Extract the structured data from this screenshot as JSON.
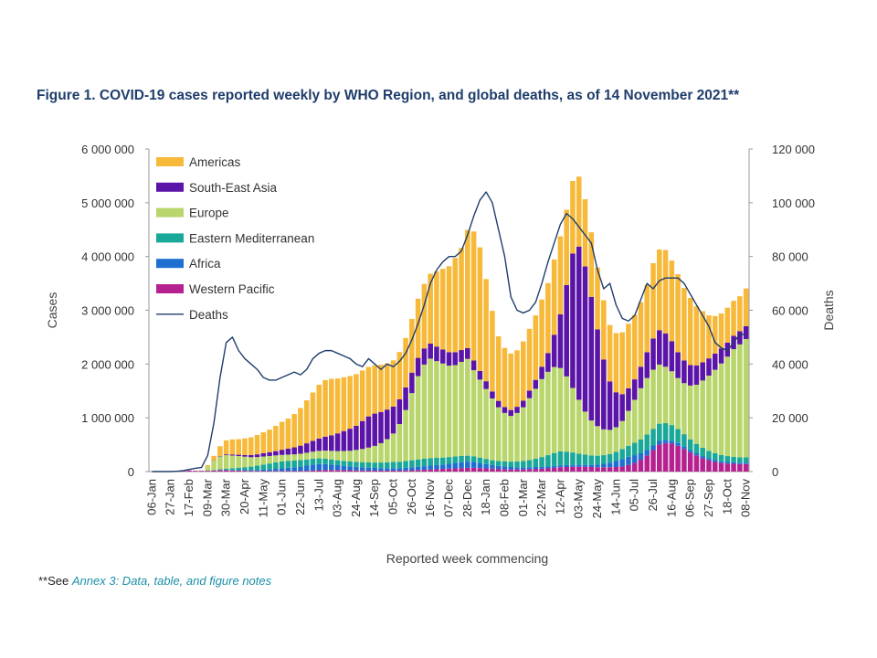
{
  "title": "Figure 1. COVID-19 cases reported weekly by WHO Region, and global deaths, as of 14 November 2021**",
  "footnote": {
    "prefix": "**See ",
    "link_text": "Annex 3: Data, table, and figure notes"
  },
  "chart_data": {
    "type": "bar",
    "stacked": true,
    "title": "Figure 1. COVID-19 cases reported weekly by WHO Region, and global deaths, as of 14 November 2021**",
    "xlabel": "Reported week commencing",
    "ylabel": "Cases",
    "y2label": "Deaths",
    "ylim": [
      0,
      6000000
    ],
    "y2lim": [
      0,
      120000
    ],
    "yticks": [
      "0",
      "1 000 000",
      "2 000 000",
      "3 000 000",
      "4 000 000",
      "5 000 000",
      "6 000 000"
    ],
    "y2ticks": [
      "0",
      "20 000",
      "40 000",
      "60 000",
      "80 000",
      "100 000",
      "120 000"
    ],
    "legend_position": "top-left (inside)",
    "categories": [
      "06-Jan",
      "13-Jan",
      "20-Jan",
      "27-Jan",
      "03-Feb",
      "10-Feb",
      "17-Feb",
      "24-Feb",
      "02-Mar",
      "09-Mar",
      "16-Mar",
      "23-Mar",
      "30-Mar",
      "06-Apr",
      "13-Apr",
      "20-Apr",
      "27-Apr",
      "04-May",
      "11-May",
      "18-May",
      "25-May",
      "01-Jun",
      "08-Jun",
      "15-Jun",
      "22-Jun",
      "29-Jun",
      "06-Jul",
      "13-Jul",
      "20-Jul",
      "27-Jul",
      "03-Aug",
      "10-Aug",
      "17-Aug",
      "24-Aug",
      "31-Aug",
      "07-Sep",
      "14-Sep",
      "21-Sep",
      "28-Sep",
      "05-Oct",
      "12-Oct",
      "19-Oct",
      "26-Oct",
      "02-Nov",
      "09-Nov",
      "16-Nov",
      "23-Nov",
      "30-Nov",
      "07-Dec",
      "14-Dec",
      "21-Dec",
      "28-Dec",
      "04-Jan",
      "11-Jan",
      "18-Jan",
      "25-Jan",
      "01-Feb",
      "08-Feb",
      "15-Feb",
      "22-Feb",
      "01-Mar",
      "08-Mar",
      "15-Mar",
      "22-Mar",
      "29-Mar",
      "05-Apr",
      "12-Apr",
      "19-Apr",
      "26-Apr",
      "03-May",
      "10-May",
      "17-May",
      "24-May",
      "31-May",
      "07-Jun",
      "14-Jun",
      "21-Jun",
      "28-Jun",
      "05-Jul",
      "12-Jul",
      "19-Jul",
      "26-Jul",
      "02-Aug",
      "09-Aug",
      "16-Aug",
      "23-Aug",
      "30-Aug",
      "06-Sep",
      "13-Sep",
      "20-Sep",
      "27-Sep",
      "04-Oct",
      "11-Oct",
      "18-Oct",
      "25-Oct",
      "01-Nov",
      "08-Nov"
    ],
    "tick_labels": [
      "06-Jan",
      "27-Jan",
      "17-Feb",
      "09-Mar",
      "30-Mar",
      "20-Apr",
      "11-May",
      "01-Jun",
      "22-Jun",
      "13-Jul",
      "03-Aug",
      "24-Aug",
      "14-Sep",
      "05-Oct",
      "26-Oct",
      "16-Nov",
      "07-Dec",
      "28-Dec",
      "18-Jan",
      "08-Feb",
      "01-Mar",
      "22-Mar",
      "12-Apr",
      "03-May",
      "24-May",
      "14-Jun",
      "05-Jul",
      "26-Jul",
      "16-Aug",
      "06-Sep",
      "27-Sep",
      "18-Oct",
      "08-Nov"
    ],
    "series": [
      {
        "name": "Western Pacific",
        "color": "#b5218f",
        "values": [
          0,
          0,
          0,
          5000,
          15000,
          25000,
          20000,
          15000,
          15000,
          15000,
          20000,
          25000,
          25000,
          20000,
          18000,
          15000,
          12000,
          10000,
          10000,
          10000,
          10000,
          10000,
          10000,
          10000,
          12000,
          15000,
          20000,
          25000,
          30000,
          30000,
          30000,
          28000,
          25000,
          22000,
          20000,
          18000,
          18000,
          18000,
          18000,
          18000,
          18000,
          20000,
          25000,
          30000,
          35000,
          40000,
          45000,
          50000,
          55000,
          60000,
          65000,
          70000,
          70000,
          65000,
          60000,
          55000,
          50000,
          45000,
          40000,
          40000,
          40000,
          45000,
          50000,
          55000,
          60000,
          70000,
          80000,
          85000,
          90000,
          90000,
          90000,
          85000,
          80000,
          80000,
          80000,
          85000,
          95000,
          120000,
          160000,
          220000,
          300000,
          400000,
          500000,
          530000,
          520000,
          480000,
          420000,
          360000,
          300000,
          250000,
          210000,
          180000,
          160000,
          150000,
          145000,
          140000,
          140000
        ]
      },
      {
        "name": "Africa",
        "color": "#1f6fd1",
        "values": [
          0,
          0,
          0,
          0,
          0,
          0,
          0,
          0,
          0,
          500,
          1000,
          3000,
          5000,
          8000,
          10000,
          12000,
          15000,
          20000,
          25000,
          30000,
          40000,
          50000,
          60000,
          70000,
          80000,
          95000,
          110000,
          115000,
          110000,
          100000,
          90000,
          80000,
          70000,
          65000,
          60000,
          55000,
          50000,
          45000,
          45000,
          45000,
          45000,
          50000,
          55000,
          60000,
          65000,
          70000,
          75000,
          80000,
          90000,
          100000,
          110000,
          115000,
          110000,
          95000,
          80000,
          65000,
          55000,
          50000,
          45000,
          40000,
          35000,
          35000,
          35000,
          35000,
          35000,
          35000,
          35000,
          35000,
          35000,
          35000,
          35000,
          40000,
          50000,
          65000,
          85000,
          110000,
          140000,
          155000,
          145000,
          120000,
          100000,
          85000,
          70000,
          60000,
          55000,
          50000,
          45000,
          40000,
          40000,
          38000,
          35000,
          33000,
          30000,
          28000,
          26000,
          25000,
          25000
        ]
      },
      {
        "name": "Eastern Mediterranean",
        "color": "#1aa898",
        "values": [
          0,
          0,
          0,
          0,
          0,
          0,
          0,
          0,
          500,
          2000,
          8000,
          15000,
          25000,
          35000,
          45000,
          55000,
          65000,
          80000,
          95000,
          110000,
          120000,
          130000,
          130000,
          125000,
          120000,
          115000,
          110000,
          105000,
          100000,
          95000,
          90000,
          90000,
          92000,
          95000,
          95000,
          98000,
          100000,
          105000,
          110000,
          115000,
          120000,
          125000,
          130000,
          135000,
          140000,
          140000,
          135000,
          130000,
          125000,
          120000,
          115000,
          110000,
          105000,
          100000,
          95000,
          90000,
          90000,
          95000,
          100000,
          110000,
          120000,
          135000,
          155000,
          180000,
          210000,
          240000,
          260000,
          250000,
          230000,
          210000,
          190000,
          175000,
          165000,
          160000,
          160000,
          170000,
          185000,
          205000,
          230000,
          260000,
          290000,
          310000,
          320000,
          310000,
          290000,
          260000,
          230000,
          200000,
          175000,
          155000,
          140000,
          130000,
          120000,
          110000,
          105000,
          100000,
          100000
        ]
      },
      {
        "name": "Europe",
        "color": "#b8d66b",
        "values": [
          0,
          0,
          0,
          0,
          0,
          0,
          0,
          0,
          2000,
          80000,
          180000,
          240000,
          250000,
          235000,
          215000,
          195000,
          175000,
          160000,
          150000,
          140000,
          130000,
          120000,
          115000,
          115000,
          120000,
          125000,
          130000,
          140000,
          150000,
          160000,
          170000,
          185000,
          200000,
          220000,
          245000,
          275000,
          310000,
          360000,
          430000,
          530000,
          700000,
          950000,
          1250000,
          1550000,
          1750000,
          1850000,
          1800000,
          1750000,
          1700000,
          1700000,
          1750000,
          1800000,
          1600000,
          1450000,
          1300000,
          1150000,
          1000000,
          900000,
          850000,
          900000,
          1000000,
          1150000,
          1300000,
          1450000,
          1550000,
          1600000,
          1550000,
          1400000,
          1200000,
          1000000,
          800000,
          650000,
          550000,
          480000,
          450000,
          460000,
          520000,
          650000,
          800000,
          950000,
          1050000,
          1100000,
          1100000,
          1050000,
          1000000,
          950000,
          950000,
          1000000,
          1100000,
          1250000,
          1400000,
          1550000,
          1700000,
          1850000,
          2000000,
          2100000,
          2200000
        ]
      },
      {
        "name": "South-East Asia",
        "color": "#5b14a8",
        "values": [
          0,
          0,
          0,
          0,
          0,
          0,
          0,
          0,
          0,
          1000,
          3000,
          8000,
          15000,
          20000,
          25000,
          30000,
          40000,
          50000,
          60000,
          70000,
          80000,
          95000,
          110000,
          130000,
          150000,
          175000,
          200000,
          230000,
          260000,
          290000,
          330000,
          370000,
          410000,
          450000,
          520000,
          580000,
          600000,
          580000,
          550000,
          500000,
          460000,
          420000,
          380000,
          340000,
          300000,
          280000,
          270000,
          260000,
          250000,
          240000,
          220000,
          200000,
          180000,
          160000,
          145000,
          130000,
          120000,
          110000,
          110000,
          115000,
          125000,
          140000,
          165000,
          230000,
          350000,
          600000,
          1000000,
          1700000,
          2500000,
          2850000,
          2700000,
          2300000,
          1800000,
          1300000,
          900000,
          650000,
          500000,
          420000,
          380000,
          400000,
          480000,
          580000,
          640000,
          620000,
          560000,
          480000,
          420000,
          380000,
          360000,
          340000,
          320000,
          300000,
          280000,
          260000,
          250000,
          245000,
          240000
        ]
      },
      {
        "name": "Americas",
        "color": "#f7b93a",
        "values": [
          0,
          0,
          0,
          0,
          0,
          0,
          0,
          0,
          1000,
          20000,
          80000,
          180000,
          260000,
          280000,
          290000,
          310000,
          330000,
          360000,
          390000,
          420000,
          470000,
          520000,
          560000,
          620000,
          700000,
          800000,
          900000,
          1000000,
          1050000,
          1050000,
          1020000,
          1000000,
          980000,
          960000,
          940000,
          920000,
          900000,
          880000,
          860000,
          860000,
          880000,
          920000,
          1000000,
          1100000,
          1200000,
          1300000,
          1400000,
          1500000,
          1600000,
          1750000,
          1900000,
          2200000,
          2400000,
          2300000,
          1900000,
          1500000,
          1200000,
          1100000,
          1050000,
          1050000,
          1100000,
          1150000,
          1200000,
          1250000,
          1300000,
          1400000,
          1450000,
          1400000,
          1350000,
          1300000,
          1250000,
          1200000,
          1150000,
          1100000,
          1050000,
          1100000,
          1150000,
          1200000,
          1200000,
          1200000,
          1250000,
          1400000,
          1500000,
          1550000,
          1500000,
          1450000,
          1350000,
          1250000,
          1100000,
          950000,
          800000,
          700000,
          650000,
          650000,
          650000,
          650000,
          700000
        ]
      }
    ],
    "deaths": {
      "name": "Deaths",
      "color": "#1f3d6b",
      "axis": "secondary",
      "values": [
        0,
        0,
        0,
        0,
        100,
        300,
        800,
        1200,
        1500,
        6000,
        18000,
        35000,
        48000,
        50000,
        45000,
        42000,
        40000,
        38000,
        35000,
        34000,
        34000,
        35000,
        36000,
        37000,
        36000,
        38000,
        42000,
        44000,
        45000,
        45000,
        44000,
        43000,
        42000,
        40000,
        39000,
        42000,
        40000,
        38000,
        40000,
        39000,
        41000,
        44000,
        49000,
        55000,
        62000,
        70000,
        75000,
        78000,
        80000,
        80000,
        82000,
        88000,
        95000,
        101000,
        104000,
        100000,
        90000,
        80000,
        65000,
        60000,
        59000,
        60000,
        63000,
        70000,
        78000,
        85000,
        92000,
        96000,
        94000,
        91000,
        88000,
        85000,
        75000,
        68000,
        70000,
        62000,
        57000,
        56000,
        58000,
        64000,
        70000,
        68000,
        71000,
        72000,
        72000,
        72000,
        70000,
        66000,
        62000,
        58000,
        54000,
        48000,
        46000,
        45000,
        48000,
        51000,
        51000
      ]
    }
  }
}
